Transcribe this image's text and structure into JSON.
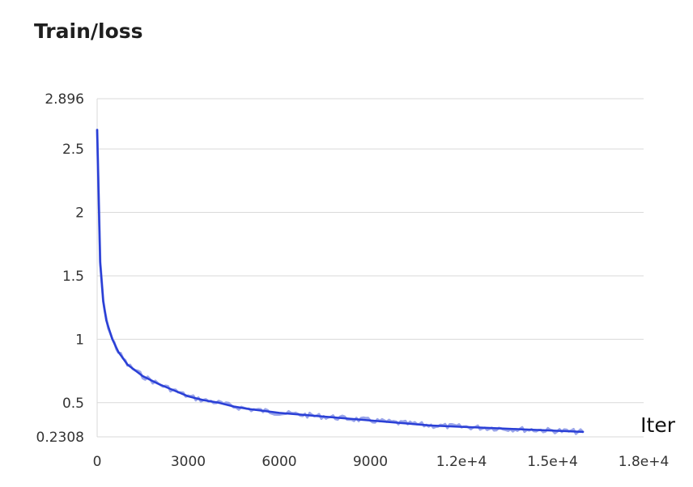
{
  "chart_data": {
    "type": "line",
    "title": "Train/loss",
    "xlabel": "Iter",
    "ylabel": "",
    "xlim": [
      0,
      18000
    ],
    "ylim": [
      0.2308,
      2.896
    ],
    "x_ticks": [
      0,
      3000,
      6000,
      9000,
      12000,
      15000,
      18000
    ],
    "x_tick_labels": [
      "0",
      "3000",
      "6000",
      "9000",
      "1.2e+4",
      "1.5e+4",
      "1.8e+4"
    ],
    "y_ticks": [
      0.2308,
      0.5,
      1,
      1.5,
      2,
      2.5,
      2.896
    ],
    "y_tick_labels": [
      "0.2308",
      "0.5",
      "1",
      "1.5",
      "2",
      "2.5",
      "2.896"
    ],
    "grid": true,
    "colors": {
      "smoothed": "#2a3fd6",
      "raw": "#8f9be8",
      "grid": "#d9d9d9"
    },
    "series": [
      {
        "x": [
          0,
          100,
          200,
          300,
          500,
          700,
          1000,
          1500,
          2000,
          2500,
          3000,
          3500,
          4000,
          4500,
          5000,
          6000,
          7000,
          8000,
          9000,
          10000,
          11000,
          12000,
          13000,
          14000,
          15000,
          16000
        ],
        "y": [
          2.65,
          1.6,
          1.3,
          1.15,
          1.0,
          0.9,
          0.8,
          0.71,
          0.65,
          0.6,
          0.55,
          0.52,
          0.5,
          0.47,
          0.45,
          0.42,
          0.4,
          0.38,
          0.36,
          0.34,
          0.32,
          0.31,
          0.3,
          0.29,
          0.28,
          0.27
        ]
      }
    ]
  }
}
